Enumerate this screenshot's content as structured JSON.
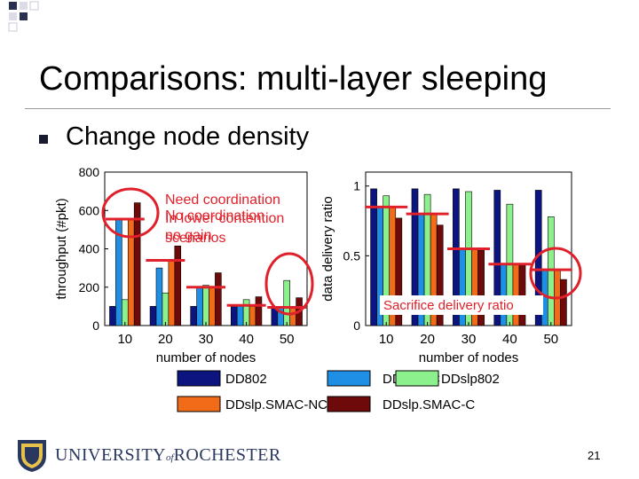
{
  "slide": {
    "title": "Comparisons: multi-layer sleeping",
    "bullet": "Change node density",
    "page_number": "21",
    "footer": {
      "university_main": "UNIVERSITY",
      "university_of": "of",
      "university_end": "ROCHESTER"
    }
  },
  "annotations": {
    "need_coordination": "Need coordination",
    "no_coordination": "No coordination",
    "in_lower_contention": "In lower contention",
    "scenarios": "scenarios",
    "no_gain": "no gain",
    "sacrifice": "Sacrifice delivery ratio"
  },
  "colors": {
    "DD802": "#0c1480",
    "DDSMAC": "#1f8fe6",
    "DDslp802": "#8cf08c",
    "DDslp.SMAC-NC": "#f26b18",
    "DDslp.SMAC-C": "#6e0a0a",
    "highlight": "#e0202a"
  },
  "chart_data": [
    {
      "type": "bar",
      "xlabel": "number of nodes",
      "ylabel": "throughput (#pkt)",
      "categories": [
        "10",
        "20",
        "30",
        "40",
        "50"
      ],
      "ylim": [
        0,
        800
      ],
      "yticks": [
        "0",
        "200",
        "400",
        "600",
        "800"
      ],
      "series": [
        {
          "name": "DD802",
          "values": [
            100,
            100,
            100,
            100,
            100
          ]
        },
        {
          "name": "DDSMAC",
          "values": [
            555,
            300,
            200,
            105,
            100
          ]
        },
        {
          "name": "DDslp802",
          "values": [
            135,
            170,
            210,
            135,
            235
          ]
        },
        {
          "name": "DDslp.SMAC-NC",
          "values": [
            560,
            340,
            200,
            100,
            95
          ]
        },
        {
          "name": "DDslp.SMAC-C",
          "values": [
            640,
            415,
            275,
            150,
            145
          ]
        }
      ]
    },
    {
      "type": "bar",
      "xlabel": "number of nodes",
      "ylabel": "data delivery ratio",
      "categories": [
        "10",
        "20",
        "30",
        "40",
        "50"
      ],
      "ylim": [
        0,
        1.1
      ],
      "yticks": [
        "0",
        "0.5",
        "1"
      ],
      "series": [
        {
          "name": "DD802",
          "values": [
            0.98,
            0.98,
            0.98,
            0.97,
            0.97
          ]
        },
        {
          "name": "DDSMAC",
          "values": [
            0.85,
            0.8,
            0.55,
            0.44,
            0.4
          ]
        },
        {
          "name": "DDslp802",
          "values": [
            0.93,
            0.94,
            0.96,
            0.87,
            0.78
          ]
        },
        {
          "name": "DDslp.SMAC-NC",
          "values": [
            0.85,
            0.8,
            0.55,
            0.44,
            0.4
          ]
        },
        {
          "name": "DDslp.SMAC-C",
          "values": [
            0.77,
            0.72,
            0.54,
            0.43,
            0.33
          ]
        }
      ]
    }
  ],
  "legend": {
    "items": [
      "DD802",
      "DDSMAC",
      "DDslp802",
      "DDslp.SMAC-NC",
      "DDslp.SMAC-C"
    ]
  }
}
